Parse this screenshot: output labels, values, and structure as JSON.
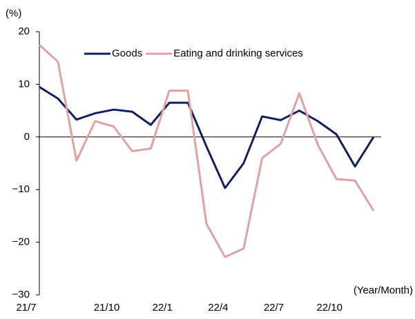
{
  "chart_data": {
    "type": "line",
    "y_unit_label": "(%)",
    "x_unit_label": "(Year/Month)",
    "categories": [
      "21/7",
      null,
      null,
      null,
      "21/10",
      null,
      null,
      "22/1",
      null,
      null,
      "22/4",
      null,
      null,
      "22/7",
      null,
      null,
      "22/10",
      null,
      null
    ],
    "series": [
      {
        "name": "Goods",
        "color": "#0d1f5c",
        "values": [
          9.5,
          7.3,
          3.3,
          4.5,
          5.2,
          4.8,
          2.3,
          6.5,
          6.5,
          -1.8,
          -9.7,
          -5.0,
          3.9,
          3.2,
          5.0,
          3.0,
          0.5,
          -5.6,
          0.0
        ]
      },
      {
        "name": "Eating and drinking services",
        "color": "#e0a0a0",
        "values": [
          17.5,
          14.3,
          -4.5,
          3.0,
          2.0,
          -2.7,
          -2.2,
          8.8,
          8.8,
          -16.5,
          -22.8,
          -21.2,
          -4.0,
          -1.3,
          8.3,
          -1.5,
          -8.0,
          -8.3,
          -14.0
        ]
      }
    ],
    "ylim": [
      -30,
      20
    ],
    "yticks": [
      {
        "value": -30,
        "label": "−30"
      },
      {
        "value": -20,
        "label": "−20"
      },
      {
        "value": -10,
        "label": "−10"
      },
      0,
      10,
      20
    ]
  }
}
